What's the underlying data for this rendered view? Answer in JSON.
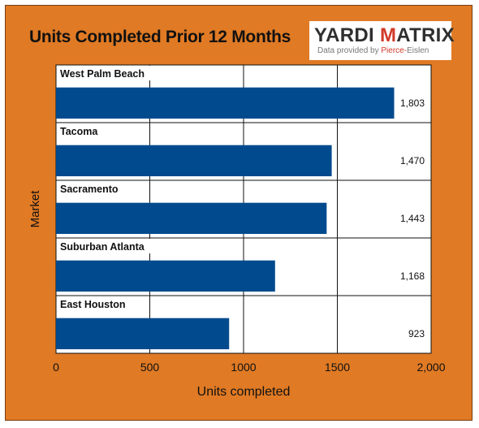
{
  "logo": {
    "brand_a": "YARDI ",
    "brand_b": "M",
    "brand_c": "ATRIX",
    "sub_a": "Data provided by ",
    "sub_b": "Pierce-",
    "sub_c": "Eislen"
  },
  "colors": {
    "background": "#e07a24",
    "bar": "#004a8d",
    "plot": "#ffffff"
  },
  "chart_data": {
    "type": "bar",
    "orientation": "horizontal",
    "title": "Units Completed Prior 12 Months",
    "xlabel": "Units completed",
    "ylabel": "Market",
    "categories": [
      "West Palm Beach",
      "Tacoma",
      "Sacramento",
      "Suburban Atlanta",
      "East Houston"
    ],
    "values": [
      1803,
      1470,
      1443,
      1168,
      923
    ],
    "value_labels": [
      "1,803",
      "1,470",
      "1,443",
      "1,168",
      "923"
    ],
    "xlim": [
      0,
      2000
    ],
    "xticks": [
      0,
      500,
      1000,
      1500,
      2000
    ],
    "xtick_labels": [
      "0",
      "500",
      "1000",
      "1500",
      "2,000"
    ],
    "grid": true
  }
}
